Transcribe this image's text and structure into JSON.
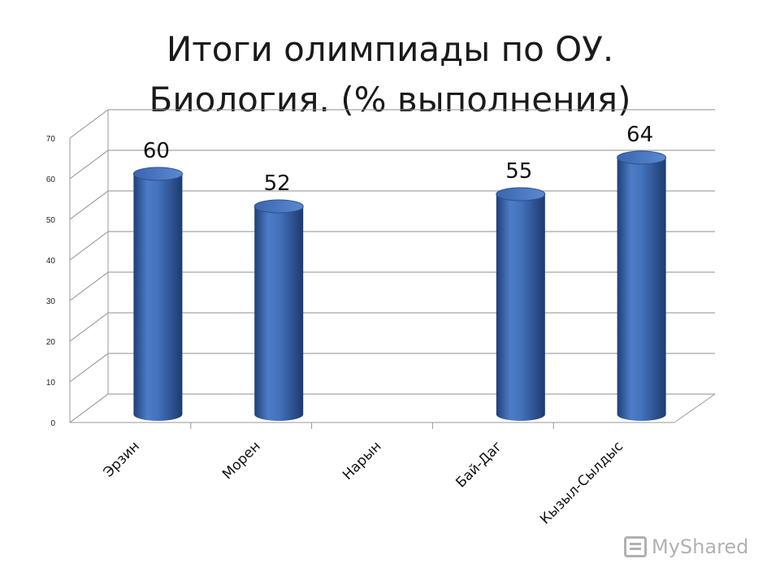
{
  "title": {
    "line1": "Итоги олимпиады по ОУ.",
    "line2": "Биология. (% выполнения)"
  },
  "chart_data": {
    "type": "bar",
    "categories": [
      "Эрзин",
      "Морен",
      "Нарын",
      "Бай-Даг",
      "Кызыл-Сылдыс"
    ],
    "values": [
      60,
      52,
      null,
      55,
      64
    ],
    "data_labels": [
      "60",
      "52",
      "",
      "55",
      "64"
    ],
    "ylim": [
      0,
      70
    ],
    "yticks": [
      0,
      10,
      20,
      30,
      40,
      50,
      60,
      70
    ],
    "grid": true,
    "legend": "none",
    "bar_color": "#3f6bb5"
  },
  "watermark": {
    "text": "MyShared",
    "icon": "slideshow-icon"
  }
}
